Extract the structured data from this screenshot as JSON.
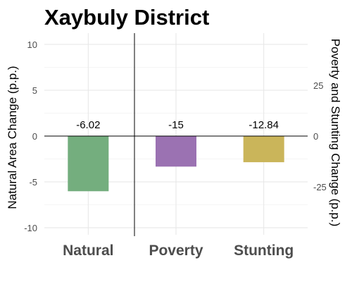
{
  "chart_data": {
    "type": "bar",
    "title": "Xaybuly District",
    "categories": [
      "Natural",
      "Poverty",
      "Stunting"
    ],
    "series": [
      {
        "values": [
          -6.02,
          -15,
          -12.84
        ],
        "colors": [
          "#74ae7e",
          "#9b72b2",
          "#cab55a"
        ]
      }
    ],
    "data_labels": [
      "-6.02",
      "-15",
      "-12.84"
    ],
    "ylabel": "Natural Area Change (p.p.)",
    "ylabel_right": "Poverty and Stunting Change (p.p.)",
    "ylim": [
      -10.5,
      10
    ],
    "ylim_right": [
      -47.25,
      45
    ],
    "yticks": [
      10,
      5,
      0,
      -5,
      -10
    ],
    "yticks_right": [
      25,
      0,
      -25
    ],
    "axis_scale_note": "Natural plotted on left axis; Poverty and Stunting on right axis",
    "grid": true,
    "legend": "none"
  }
}
